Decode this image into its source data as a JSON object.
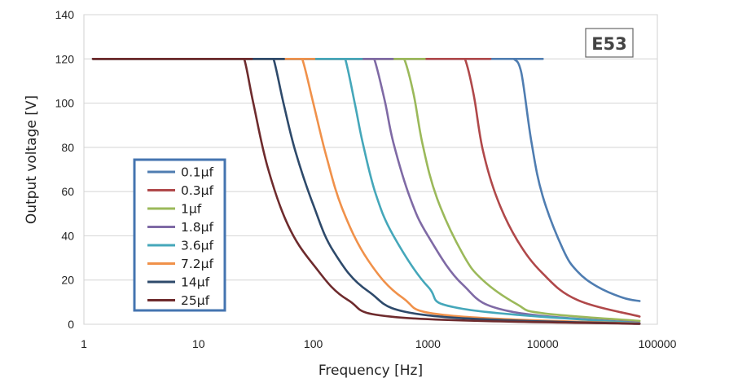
{
  "chart_data": {
    "type": "line",
    "title": "",
    "badge": "E53",
    "xlabel": "Frequency [Hz]",
    "ylabel": "Output voltage [V]",
    "xscale": "log",
    "xlim": [
      1,
      100000
    ],
    "ylim": [
      0,
      140
    ],
    "xticks": [
      1,
      10,
      100,
      1000,
      10000,
      100000
    ],
    "xtick_labels": [
      "1",
      "10",
      "100",
      "1000",
      "10000",
      "100000"
    ],
    "yticks": [
      0,
      20,
      40,
      60,
      80,
      100,
      120,
      140
    ],
    "ytick_labels": [
      "0",
      "20",
      "40",
      "60",
      "80",
      "100",
      "120",
      "140"
    ],
    "grid": "horizontal",
    "legend_position": "left-center",
    "plateau_voltage": 120,
    "x_start": 1.2,
    "x_end": 70000,
    "series": [
      {
        "name": "0.1µf",
        "color": "#4F7DB1",
        "corner_hz": 5600,
        "x": [
          1.2,
          5000,
          5600,
          6500,
          8000,
          10000,
          15000,
          20000,
          30000,
          50000,
          70000
        ],
        "y": [
          120,
          120,
          120,
          114,
          82,
          58,
          34,
          24,
          17,
          12,
          10.5
        ]
      },
      {
        "name": "0.3µf",
        "color": "#B0484A",
        "corner_hz": 2100,
        "x": [
          1.2,
          1900,
          2100,
          2500,
          3000,
          4000,
          6000,
          10000,
          20000,
          70000
        ],
        "y": [
          120,
          120,
          120,
          104,
          79,
          57,
          38,
          23,
          11,
          3.5
        ]
      },
      {
        "name": "1µf",
        "color": "#9BB95A",
        "corner_hz": 620,
        "x": [
          1.2,
          560,
          620,
          750,
          900,
          1200,
          2000,
          3000,
          6000,
          10000,
          70000
        ],
        "y": [
          120,
          120,
          120,
          104,
          81,
          57,
          32,
          20,
          9,
          5,
          1.5
        ]
      },
      {
        "name": "1.8µf",
        "color": "#7F6AA5",
        "corner_hz": 340,
        "x": [
          1.2,
          310,
          340,
          420,
          500,
          700,
          1000,
          2000,
          5000,
          70000
        ],
        "y": [
          120,
          120,
          120,
          101,
          82,
          57,
          40,
          18,
          6,
          0.6
        ]
      },
      {
        "name": "3.6µf",
        "color": "#45A7BA",
        "corner_hz": 190,
        "x": [
          1.2,
          175,
          190,
          230,
          270,
          350,
          500,
          1000,
          2000,
          70000
        ],
        "y": [
          120,
          120,
          120,
          100,
          82,
          59,
          40,
          17,
          7,
          0.4
        ]
      },
      {
        "name": "7.2µf",
        "color": "#F0914A",
        "corner_hz": 80,
        "x": [
          1.2,
          72,
          80,
          100,
          130,
          180,
          300,
          600,
          1500,
          70000
        ],
        "y": [
          120,
          120,
          120,
          100,
          76,
          52,
          29,
          12,
          4,
          0.3
        ]
      },
      {
        "name": "14µf",
        "color": "#2E4A6B",
        "corner_hz": 45,
        "x": [
          1.2,
          41,
          45,
          55,
          70,
          100,
          150,
          300,
          1000,
          70000
        ],
        "y": [
          120,
          120,
          120,
          100,
          78,
          54,
          33,
          15,
          4,
          0.2
        ]
      },
      {
        "name": "25µf",
        "color": "#6E2B2D",
        "corner_hz": 25,
        "x": [
          1.2,
          22.5,
          25,
          30,
          40,
          60,
          100,
          200,
          600,
          70000
        ],
        "y": [
          120,
          120,
          120,
          100,
          71,
          45,
          27,
          11,
          3,
          0.2
        ]
      }
    ]
  }
}
